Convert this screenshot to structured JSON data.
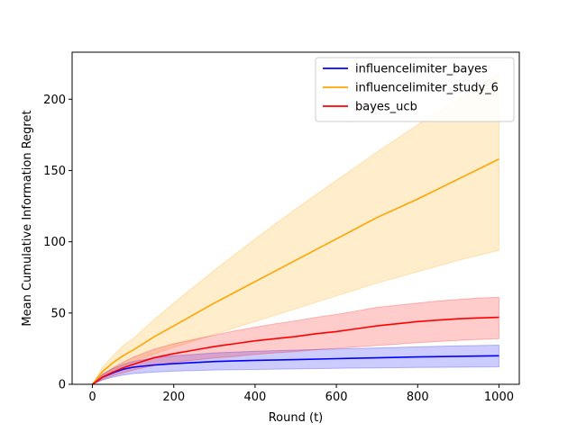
{
  "chart_data": {
    "type": "line",
    "title": "",
    "xlabel": "Round (t)",
    "ylabel": "Mean Cumulative Information Regret",
    "xlim": [
      -50,
      1050
    ],
    "ylim": [
      0,
      233
    ],
    "xticks": [
      0,
      200,
      400,
      600,
      800,
      1000
    ],
    "yticks": [
      0,
      50,
      100,
      150,
      200
    ],
    "grid": false,
    "legend_position": "top-right",
    "series": [
      {
        "name": "influencelimiter_bayes",
        "color": "#0000ff",
        "x": [
          0,
          25,
          50,
          75,
          100,
          150,
          200,
          300,
          400,
          500,
          600,
          700,
          800,
          900,
          1000
        ],
        "y": [
          0,
          5,
          8,
          10.5,
          12,
          13.5,
          14.5,
          16,
          16.8,
          17.3,
          18,
          18.6,
          19.2,
          19.6,
          20
        ],
        "lower": [
          0,
          3,
          5,
          6.5,
          7.5,
          8.5,
          9.2,
          10,
          10.4,
          10.8,
          11.2,
          11.5,
          11.8,
          12,
          12.2
        ],
        "upper": [
          0,
          7,
          11,
          14,
          16,
          18.5,
          20,
          22,
          23.2,
          24,
          24.8,
          25.5,
          26.3,
          27,
          27.5
        ]
      },
      {
        "name": "influencelimiter_study_6",
        "color": "#ffa500",
        "x": [
          0,
          25,
          50,
          75,
          100,
          150,
          200,
          300,
          400,
          500,
          600,
          700,
          800,
          900,
          1000
        ],
        "y": [
          0,
          9,
          15,
          20,
          24,
          33,
          41,
          57,
          72,
          87,
          102,
          117,
          130,
          144,
          158
        ],
        "lower": [
          0,
          6,
          10,
          13,
          16,
          21,
          26,
          35,
          44,
          53,
          62,
          71,
          79,
          87,
          94
        ],
        "upper": [
          0,
          12,
          20,
          27,
          32,
          45,
          57,
          80,
          102,
          123,
          143,
          163,
          182,
          200,
          218
        ]
      },
      {
        "name": "bayes_ucb",
        "color": "#ff0000",
        "x": [
          0,
          25,
          50,
          75,
          100,
          150,
          200,
          250,
          300,
          350,
          400,
          450,
          500,
          550,
          600,
          650,
          700,
          750,
          800,
          850,
          900,
          950,
          1000
        ],
        "y": [
          0,
          5,
          8.5,
          11.5,
          14,
          18.5,
          21.5,
          24,
          26.5,
          28.5,
          30.5,
          32,
          33.5,
          35.5,
          37,
          39,
          41,
          42.5,
          44,
          45,
          46,
          46.5,
          47
        ],
        "lower": [
          0,
          3.5,
          6,
          8,
          10,
          13,
          15.5,
          17,
          18.5,
          19.5,
          21,
          22,
          23,
          24.2,
          25.2,
          26.2,
          27.2,
          28.2,
          29.2,
          30,
          30.8,
          31.5,
          32
        ],
        "upper": [
          0,
          7,
          11.5,
          15.5,
          19,
          24.5,
          28.5,
          31.5,
          34.5,
          37.5,
          40,
          42.5,
          44.5,
          47,
          49,
          51.5,
          54,
          55.5,
          57,
          58.5,
          59.5,
          60.5,
          61
        ]
      }
    ]
  }
}
